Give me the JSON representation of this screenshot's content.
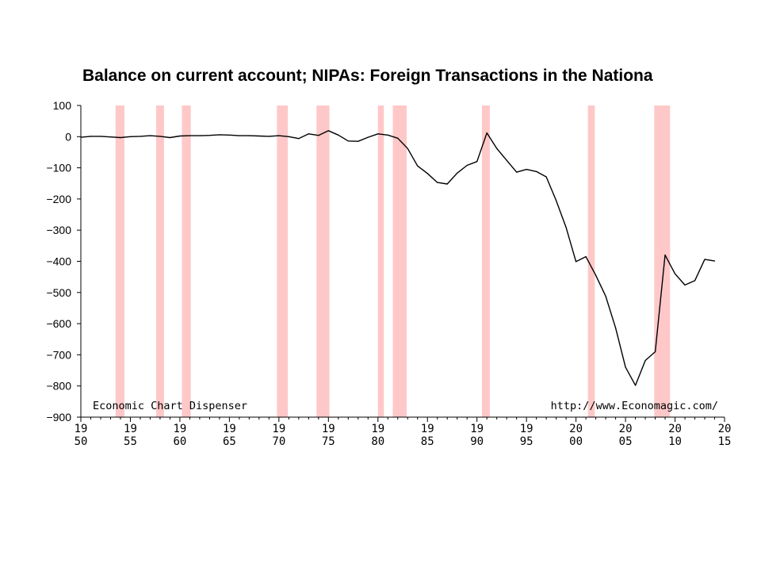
{
  "chart_data": {
    "type": "line",
    "title": "Balance on current account; NIPAs: Foreign Transactions in the Nationa",
    "xlabel": "",
    "ylabel": "",
    "xlim": [
      1950,
      2015
    ],
    "ylim": [
      -900,
      100
    ],
    "y_ticks": [
      "100",
      "0",
      "-100",
      "-200",
      "-300",
      "-400",
      "-500",
      "-600",
      "-700",
      "-800",
      "-900"
    ],
    "y_tick_values": [
      100,
      0,
      -100,
      -200,
      -300,
      -400,
      -500,
      -600,
      -700,
      -800,
      -900
    ],
    "x_ticks": [
      {
        "year": 1950,
        "top": "19",
        "bottom": "50"
      },
      {
        "year": 1955,
        "top": "19",
        "bottom": "55"
      },
      {
        "year": 1960,
        "top": "19",
        "bottom": "60"
      },
      {
        "year": 1965,
        "top": "19",
        "bottom": "65"
      },
      {
        "year": 1970,
        "top": "19",
        "bottom": "70"
      },
      {
        "year": 1975,
        "top": "19",
        "bottom": "75"
      },
      {
        "year": 1980,
        "top": "19",
        "bottom": "80"
      },
      {
        "year": 1985,
        "top": "19",
        "bottom": "85"
      },
      {
        "year": 1990,
        "top": "19",
        "bottom": "90"
      },
      {
        "year": 1995,
        "top": "19",
        "bottom": "95"
      },
      {
        "year": 2000,
        "top": "20",
        "bottom": "00"
      },
      {
        "year": 2005,
        "top": "20",
        "bottom": "05"
      },
      {
        "year": 2010,
        "top": "20",
        "bottom": "10"
      },
      {
        "year": 2015,
        "top": "20",
        "bottom": "15"
      }
    ],
    "grid": false,
    "recession_bands": [
      [
        1953.5,
        1954.4
      ],
      [
        1957.6,
        1958.4
      ],
      [
        1960.2,
        1961.1
      ],
      [
        1969.8,
        1970.9
      ],
      [
        1973.8,
        1975.1
      ],
      [
        1980.0,
        1980.6
      ],
      [
        1981.5,
        1982.9
      ],
      [
        1990.5,
        1991.3
      ],
      [
        2001.2,
        2001.9
      ],
      [
        2007.9,
        2009.5
      ]
    ],
    "series": [
      {
        "values": [
          [
            1950,
            -2
          ],
          [
            1951,
            1
          ],
          [
            1952,
            1
          ],
          [
            1953,
            -1
          ],
          [
            1954,
            -3
          ],
          [
            1955,
            0
          ],
          [
            1956,
            1
          ],
          [
            1957,
            3
          ],
          [
            1958,
            1
          ],
          [
            1959,
            -3
          ],
          [
            1960,
            2
          ],
          [
            1961,
            3
          ],
          [
            1962,
            3
          ],
          [
            1963,
            4
          ],
          [
            1964,
            6
          ],
          [
            1965,
            5
          ],
          [
            1966,
            3
          ],
          [
            1967,
            3
          ],
          [
            1968,
            2
          ],
          [
            1969,
            1
          ],
          [
            1970,
            3
          ],
          [
            1971,
            0
          ],
          [
            1972,
            -6
          ],
          [
            1973,
            9
          ],
          [
            1974,
            4
          ],
          [
            1975,
            19
          ],
          [
            1976,
            5
          ],
          [
            1977,
            -14
          ],
          [
            1978,
            -15
          ],
          [
            1979,
            -2
          ],
          [
            1980,
            9
          ],
          [
            1981,
            5
          ],
          [
            1982,
            -5
          ],
          [
            1983,
            -38
          ],
          [
            1984,
            -94
          ],
          [
            1985,
            -118
          ],
          [
            1986,
            -147
          ],
          [
            1987,
            -152
          ],
          [
            1988,
            -117
          ],
          [
            1989,
            -92
          ],
          [
            1990,
            -80
          ],
          [
            1991,
            12
          ],
          [
            1992,
            -38
          ],
          [
            1993,
            -76
          ],
          [
            1994,
            -114
          ],
          [
            1995,
            -105
          ],
          [
            1996,
            -112
          ],
          [
            1997,
            -129
          ],
          [
            1998,
            -205
          ],
          [
            1999,
            -291
          ],
          [
            2000,
            -401
          ],
          [
            2001,
            -385
          ],
          [
            2002,
            -445
          ],
          [
            2003,
            -512
          ],
          [
            2004,
            -614
          ],
          [
            2005,
            -740
          ],
          [
            2006,
            -798
          ],
          [
            2007,
            -718
          ],
          [
            2008,
            -690
          ],
          [
            2009,
            -380
          ],
          [
            2010,
            -440
          ],
          [
            2011,
            -476
          ],
          [
            2012,
            -462
          ],
          [
            2013,
            -394
          ],
          [
            2014,
            -399
          ]
        ]
      }
    ],
    "annotations": [
      "Economic Chart Dispenser",
      "http://www.Economagic.com/"
    ],
    "colors": {
      "line": "#000000",
      "band": "#ffc8c8",
      "axis": "#000000"
    }
  }
}
